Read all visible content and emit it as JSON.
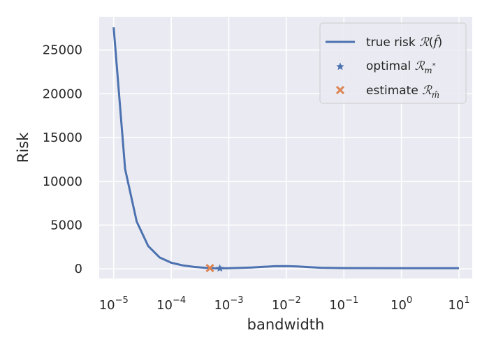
{
  "chart_data": {
    "type": "line",
    "xlabel": "bandwidth",
    "ylabel": "Risk",
    "x_scale": "log",
    "xlim": [
      5.6e-06,
      17
    ],
    "ylim": [
      -1100,
      28800
    ],
    "x_ticks": [
      {
        "value": 1e-05,
        "base": "10",
        "exp": "−5"
      },
      {
        "value": 0.0001,
        "base": "10",
        "exp": "−4"
      },
      {
        "value": 0.001,
        "base": "10",
        "exp": "−3"
      },
      {
        "value": 0.01,
        "base": "10",
        "exp": "−2"
      },
      {
        "value": 0.1,
        "base": "10",
        "exp": "−1"
      },
      {
        "value": 1,
        "base": "10",
        "exp": "0"
      },
      {
        "value": 10,
        "base": "10",
        "exp": "1"
      }
    ],
    "y_ticks": [
      {
        "value": 0,
        "label": "0"
      },
      {
        "value": 5000,
        "label": "5000"
      },
      {
        "value": 10000,
        "label": "10000"
      },
      {
        "value": 15000,
        "label": "15000"
      },
      {
        "value": 20000,
        "label": "20000"
      },
      {
        "value": 25000,
        "label": "25000"
      }
    ],
    "grid": true,
    "legend_position": "top-right",
    "series": [
      {
        "name": "true risk R(f̂)",
        "kind": "line",
        "color": "#4c72b0",
        "x": [
          1e-05,
          1.58e-05,
          2.51e-05,
          3.98e-05,
          6.31e-05,
          0.0001,
          0.000158,
          0.000251,
          0.000398,
          0.000631,
          0.001,
          0.00158,
          0.00251,
          0.00398,
          0.00631,
          0.01,
          0.0158,
          0.0251,
          0.0398,
          0.0631,
          0.1,
          1,
          10
        ],
        "y": [
          27600,
          11400,
          5400,
          2600,
          1300,
          700,
          400,
          220,
          120,
          60,
          70,
          110,
          160,
          230,
          300,
          310,
          270,
          190,
          130,
          100,
          90,
          80,
          80
        ]
      },
      {
        "name": "optimal R_{m*}",
        "kind": "scatter",
        "marker": "star",
        "color": "#4c72b0",
        "x": [
          0.0007
        ],
        "y": [
          60
        ]
      },
      {
        "name": "estimate R_{m̂}",
        "kind": "scatter",
        "marker": "x",
        "color": "#dd8452",
        "x": [
          0.00047
        ],
        "y": [
          90
        ]
      }
    ]
  },
  "colors": {
    "plot_background": "#eaeaf2",
    "grid": "#ffffff",
    "line": "#4c72b0",
    "estimate": "#dd8452"
  }
}
